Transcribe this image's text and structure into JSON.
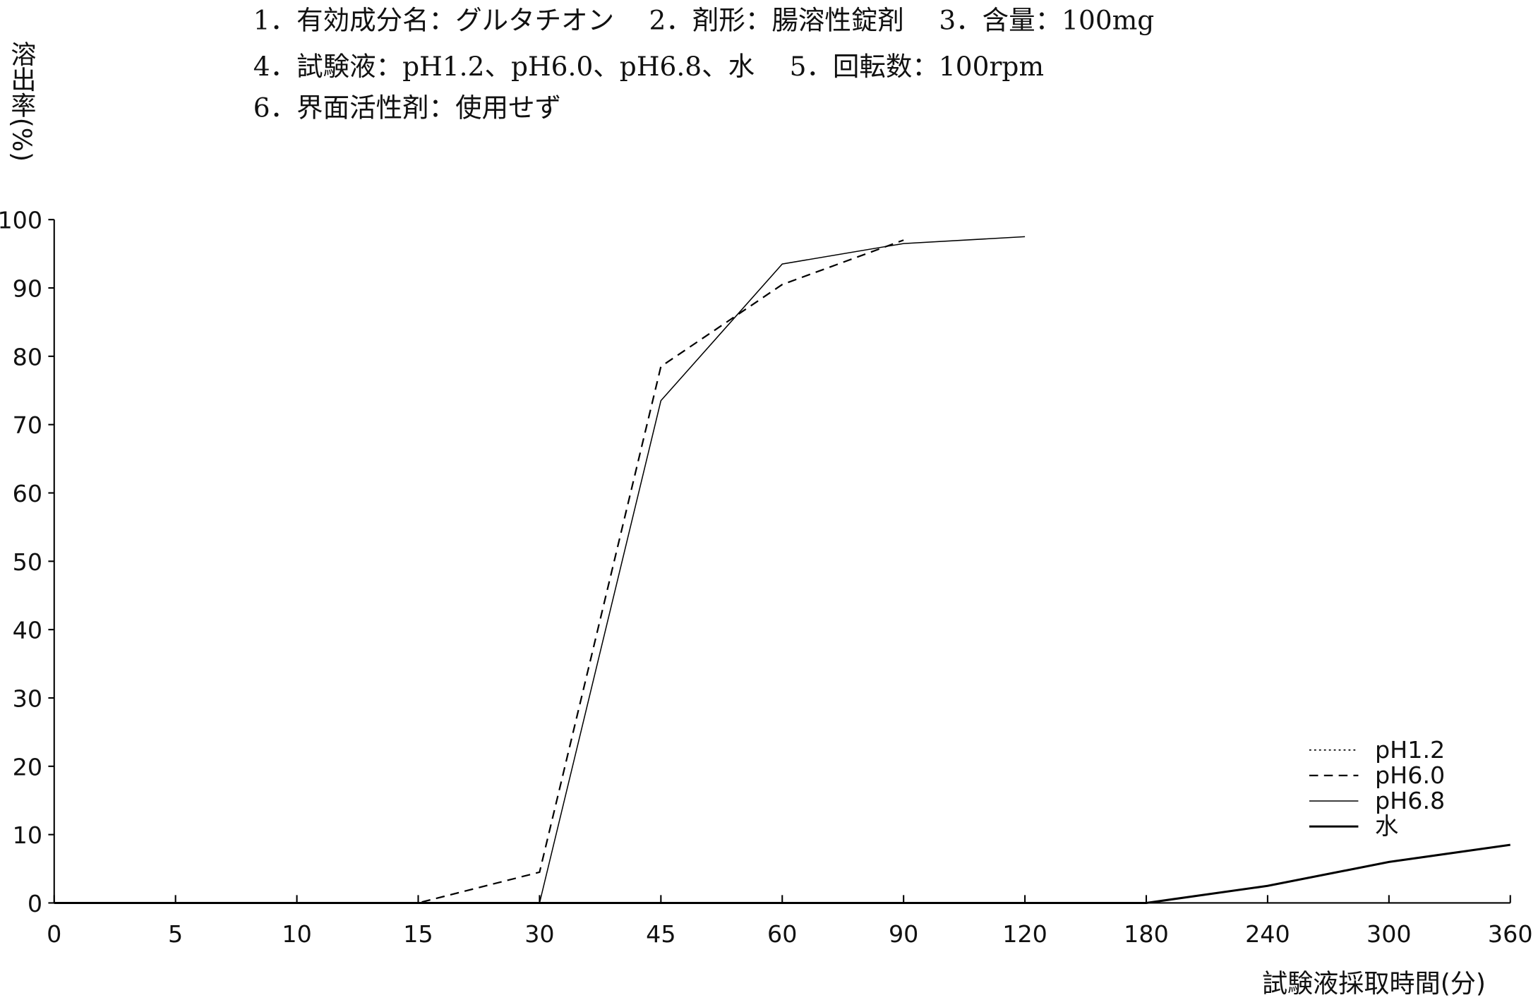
{
  "chart_data": {
    "type": "line",
    "annotations": [
      "1．有効成分名：グルタチオン　 2．剤形：腸溶性錠剤　 3．含量：100mg",
      "4．試験液：pH1.2、pH6.0、pH6.8、水　 5．回転数：100rpm",
      "6．界面活性剤：使用せず"
    ],
    "y_label": "溶出率(%)",
    "x_label": "試験液採取時間(分)",
    "categories": [
      "0",
      "5",
      "10",
      "15",
      "30",
      "45",
      "60",
      "90",
      "120",
      "180",
      "240",
      "300",
      "360"
    ],
    "series": [
      {
        "name": "pH1.2",
        "color": "#000000",
        "line_style": "dotted",
        "line_width": 1.2,
        "values": [
          0,
          0,
          0,
          0,
          0,
          0,
          0,
          0,
          0,
          null,
          null,
          null,
          null
        ]
      },
      {
        "name": "pH6.0",
        "color": "#000000",
        "line_style": "dashed",
        "line_width": 1.6,
        "values": [
          0,
          0,
          0,
          0,
          4.5,
          78.5,
          90.5,
          97,
          null,
          null,
          null,
          null,
          null
        ]
      },
      {
        "name": "pH6.8",
        "color": "#000000",
        "line_style": "solid",
        "line_width": 1.1,
        "values": [
          0,
          0,
          0,
          0,
          0,
          73.5,
          93.5,
          96.5,
          97.5,
          null,
          null,
          null,
          null
        ]
      },
      {
        "name": "水",
        "color": "#000000",
        "line_style": "solid",
        "line_width": 2.2,
        "values": [
          0,
          0,
          0,
          0,
          0,
          0,
          0,
          0,
          0,
          0,
          2.5,
          6,
          8.5
        ]
      }
    ],
    "ylim": [
      0,
      100
    ],
    "yticks": [
      0,
      10,
      20,
      30,
      40,
      50,
      60,
      70,
      80,
      90,
      100
    ],
    "grid": false,
    "legend": "lower right"
  }
}
